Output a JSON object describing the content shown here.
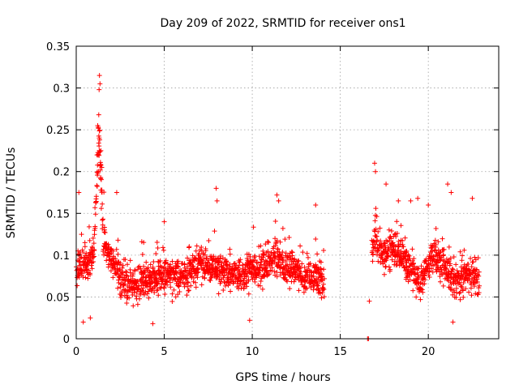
{
  "chart_data": {
    "type": "scatter",
    "title": "Day 209 of 2022, SRMTID for receiver ons1",
    "xlabel": "GPS time / hours",
    "ylabel": "SRMTID / TECUs",
    "xlim": [
      0,
      24
    ],
    "ylim": [
      0,
      0.35
    ],
    "xticks": [
      0,
      5,
      10,
      15,
      20
    ],
    "xtick_labels": [
      "0",
      "5",
      "10",
      "15",
      "20"
    ],
    "yticks": [
      0,
      0.05,
      0.1,
      0.15,
      0.2,
      0.25,
      0.3,
      0.35
    ],
    "ytick_labels": [
      "0",
      "0.05",
      "0.1",
      "0.15",
      "0.2",
      "0.25",
      "0.3",
      "0.35"
    ],
    "grid": true,
    "marker": "+",
    "color": "#ff0000",
    "series": [
      {
        "name": "SRMTID",
        "segments": [
          {
            "x_start": 0.0,
            "x_end": 14.1,
            "x_step": 0.04,
            "baseline": [
              [
                0.0,
                0.085
              ],
              [
                0.5,
                0.09
              ],
              [
                0.9,
                0.095
              ],
              [
                1.0,
                0.11
              ],
              [
                1.15,
                0.17
              ],
              [
                1.3,
                0.24
              ],
              [
                1.4,
                0.2
              ],
              [
                1.5,
                0.13
              ],
              [
                1.8,
                0.1
              ],
              [
                2.2,
                0.085
              ],
              [
                2.6,
                0.07
              ],
              [
                3.0,
                0.065
              ],
              [
                4.0,
                0.07
              ],
              [
                5.0,
                0.075
              ],
              [
                6.0,
                0.075
              ],
              [
                7.0,
                0.09
              ],
              [
                8.0,
                0.085
              ],
              [
                9.0,
                0.075
              ],
              [
                10.0,
                0.08
              ],
              [
                11.0,
                0.09
              ],
              [
                11.5,
                0.1
              ],
              [
                12.0,
                0.085
              ],
              [
                13.0,
                0.075
              ],
              [
                14.1,
                0.07
              ]
            ],
            "amplitude": 0.022
          },
          {
            "x_start": 16.8,
            "x_end": 22.9,
            "x_step": 0.04,
            "baseline": [
              [
                16.8,
                0.11
              ],
              [
                17.0,
                0.13
              ],
              [
                17.3,
                0.1
              ],
              [
                18.0,
                0.11
              ],
              [
                18.5,
                0.1
              ],
              [
                19.0,
                0.085
              ],
              [
                19.5,
                0.065
              ],
              [
                20.0,
                0.09
              ],
              [
                20.5,
                0.1
              ],
              [
                21.0,
                0.08
              ],
              [
                21.5,
                0.075
              ],
              [
                22.0,
                0.07
              ],
              [
                22.5,
                0.08
              ],
              [
                22.9,
                0.075
              ]
            ],
            "amplitude": 0.022
          }
        ],
        "extra_points": [
          [
            1.32,
            0.315
          ],
          [
            1.35,
            0.305
          ],
          [
            1.3,
            0.298
          ],
          [
            1.28,
            0.268
          ],
          [
            1.22,
            0.255
          ],
          [
            1.25,
            0.253
          ],
          [
            1.4,
            0.225
          ],
          [
            1.45,
            0.205
          ],
          [
            1.18,
            0.22
          ],
          [
            0.15,
            0.175
          ],
          [
            0.3,
            0.125
          ],
          [
            0.4,
            0.02
          ],
          [
            0.8,
            0.025
          ],
          [
            2.3,
            0.175
          ],
          [
            4.35,
            0.018
          ],
          [
            5.0,
            0.14
          ],
          [
            7.95,
            0.18
          ],
          [
            8.0,
            0.165
          ],
          [
            9.85,
            0.022
          ],
          [
            11.4,
            0.172
          ],
          [
            11.5,
            0.165
          ],
          [
            13.6,
            0.16
          ],
          [
            16.55,
            0.0
          ],
          [
            16.6,
            0.0
          ],
          [
            16.65,
            0.045
          ],
          [
            16.95,
            0.21
          ],
          [
            17.0,
            0.2
          ],
          [
            17.6,
            0.185
          ],
          [
            18.3,
            0.165
          ],
          [
            19.0,
            0.165
          ],
          [
            19.4,
            0.168
          ],
          [
            20.0,
            0.16
          ],
          [
            21.1,
            0.185
          ],
          [
            21.3,
            0.175
          ],
          [
            22.5,
            0.168
          ],
          [
            21.4,
            0.02
          ]
        ]
      }
    ]
  }
}
